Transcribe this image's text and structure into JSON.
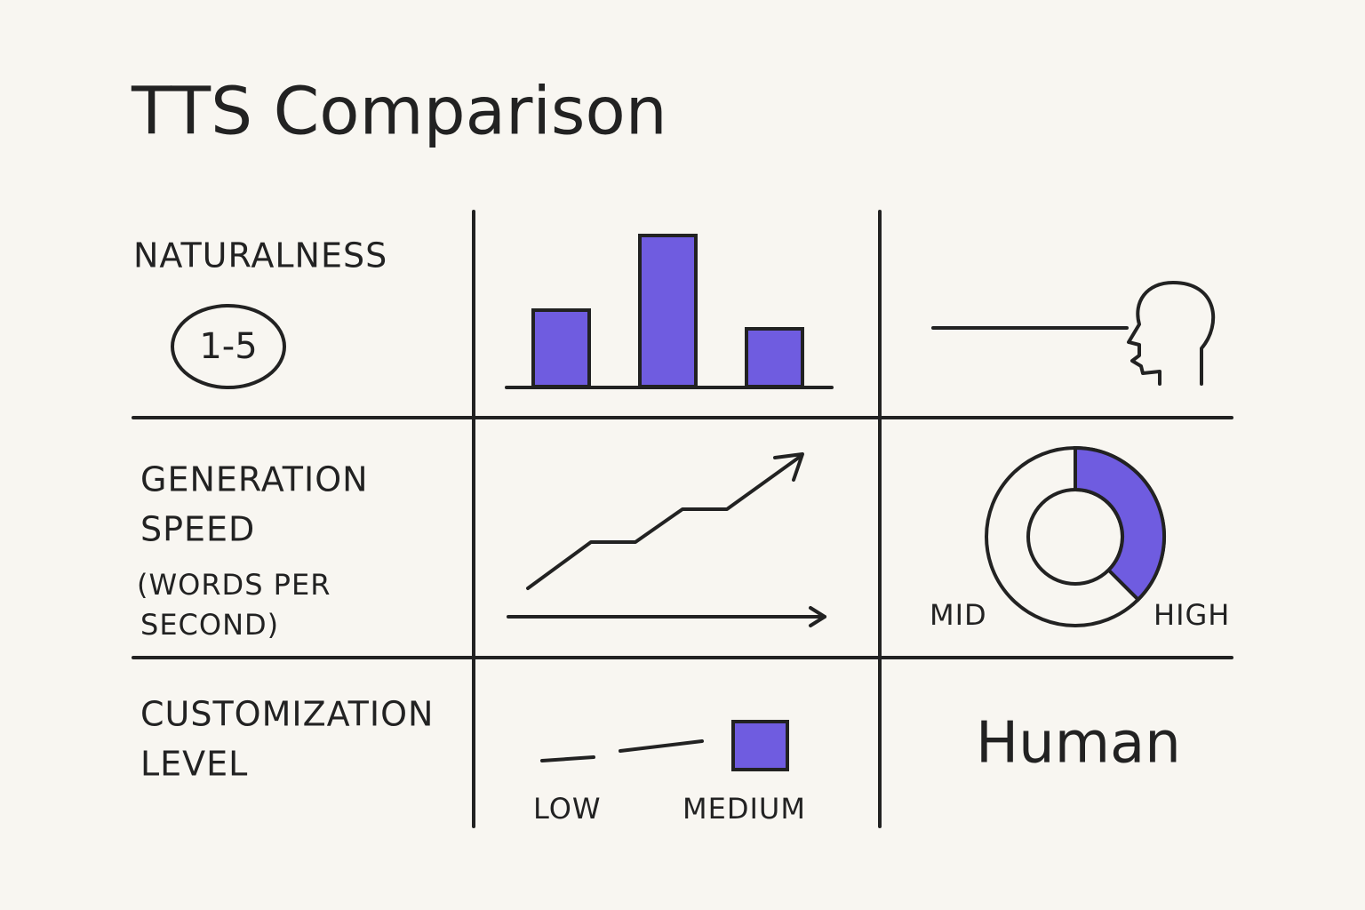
{
  "title": "TTS Comparison",
  "rows": [
    {
      "label": [
        "NATURALNESS"
      ],
      "badge": "1-5"
    },
    {
      "label": [
        "GENERATION",
        "SPEED",
        "(WORDS PER",
        "SECOND)"
      ],
      "donut_labels": [
        "MID",
        "HIGH"
      ]
    },
    {
      "label": [
        "CUSTOMIZATION",
        "LEVEL"
      ],
      "scale_labels": [
        "LOW",
        "MEDIUM"
      ],
      "result": "Human"
    }
  ]
}
